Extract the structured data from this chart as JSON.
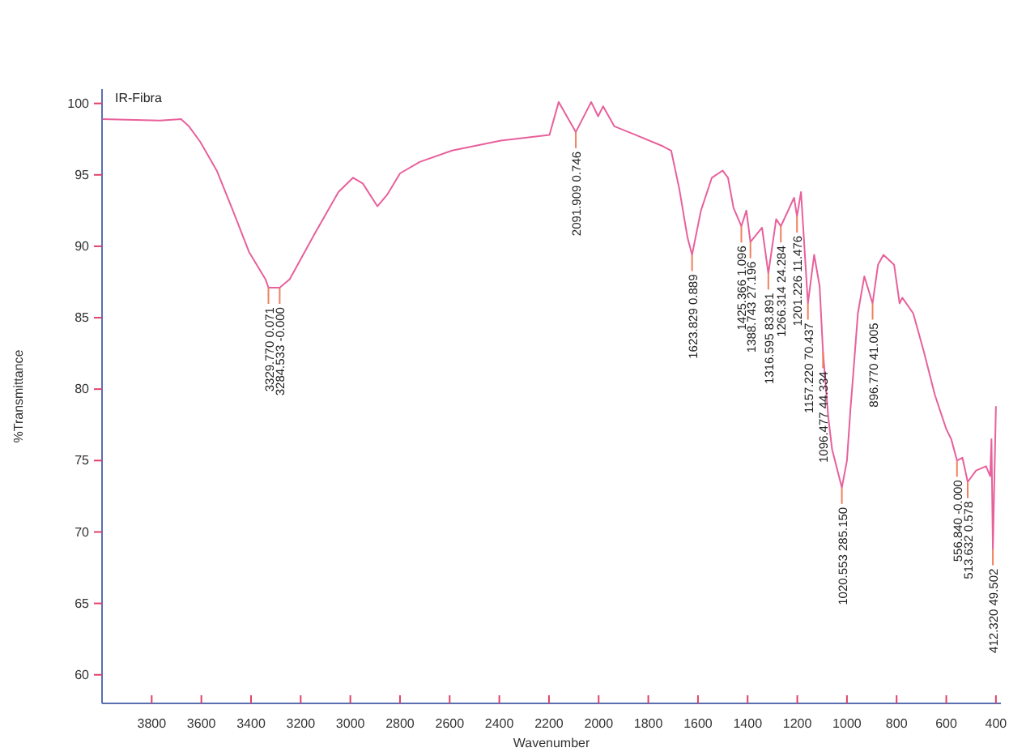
{
  "chart_data": {
    "type": "line",
    "xlabel": "Wavenumber",
    "ylabel": "%Transmittance",
    "xlim": [
      4000,
      380
    ],
    "ylim": [
      58,
      101
    ],
    "xticks": [
      3800,
      3600,
      3400,
      3200,
      3000,
      2800,
      2600,
      2400,
      2200,
      2000,
      1800,
      1600,
      1400,
      1200,
      1000,
      800,
      600,
      400
    ],
    "yticks": [
      60,
      65,
      70,
      75,
      80,
      85,
      90,
      95,
      100
    ],
    "grid": false,
    "legend": "top left",
    "marker": "none",
    "line_style": "solid",
    "series": [
      {
        "name": "IR-Fibra",
        "color": "#e8609c",
        "x": [
          3998,
          3767,
          3682,
          3650,
          3604,
          3538,
          3473,
          3408,
          3342,
          3329.77,
          3284.53,
          3244,
          3146,
          3048,
          2989,
          2950,
          2891,
          2852,
          2800,
          2721,
          2590,
          2394,
          2198,
          2161,
          2091.909,
          2030,
          2002,
          1982,
          1937,
          1852,
          1741,
          1708,
          1675,
          1642,
          1623.829,
          1588,
          1544,
          1501,
          1479,
          1457,
          1425.366,
          1405,
          1388.743,
          1342,
          1316.595,
          1285,
          1266.314,
          1213,
          1201.226,
          1185,
          1157.22,
          1132,
          1110,
          1096.477,
          1075,
          1060,
          1020.553,
          1000,
          985,
          978,
          956,
          930,
          896.77,
          875,
          853,
          810,
          788,
          777,
          733,
          690,
          646,
          600,
          580,
          556.84,
          535,
          513.632,
          480,
          440,
          423,
          418,
          412.32,
          400
        ],
        "values": [
          98.9,
          98.8,
          98.9,
          98.4,
          97.3,
          95.3,
          92.5,
          89.6,
          87.7,
          87.1,
          87.1,
          87.7,
          90.8,
          93.8,
          94.8,
          94.4,
          92.8,
          93.6,
          95.1,
          95.9,
          96.7,
          97.4,
          97.8,
          100.1,
          98.0,
          100.1,
          99.1,
          99.8,
          98.4,
          97.8,
          97.0,
          96.7,
          94.0,
          90.6,
          89.4,
          92.5,
          94.8,
          95.3,
          94.8,
          92.7,
          91.4,
          92.5,
          90.3,
          91.3,
          88.1,
          91.9,
          91.4,
          93.4,
          92.1,
          93.8,
          86.0,
          89.4,
          87.2,
          82.6,
          78.0,
          75.8,
          73.1,
          75.0,
          78.8,
          80.3,
          85.3,
          87.9,
          86.0,
          88.7,
          89.4,
          88.7,
          86.0,
          86.4,
          85.3,
          82.6,
          79.6,
          77.2,
          76.5,
          75.0,
          75.2,
          73.5,
          74.3,
          74.6,
          73.9,
          76.5,
          68.8,
          78.8
        ]
      }
    ],
    "annotations": [
      {
        "text": "3329.770  0.071",
        "x": 3329.77,
        "y": 87.1
      },
      {
        "text": "3284.533  -0.000",
        "x": 3284.53,
        "y": 87.1
      },
      {
        "text": "2091.909  0.746",
        "x": 2091.909,
        "y": 98.0
      },
      {
        "text": "1623.829  0.889",
        "x": 1623.829,
        "y": 89.4
      },
      {
        "text": "1425.366  1.096",
        "x": 1425.366,
        "y": 91.4
      },
      {
        "text": "1388.743  27.196",
        "x": 1388.743,
        "y": 90.3
      },
      {
        "text": "1316.595  83.891",
        "x": 1316.595,
        "y": 88.1
      },
      {
        "text": "1266.314  24.284",
        "x": 1266.314,
        "y": 91.4
      },
      {
        "text": "1201.226  11.476",
        "x": 1201.226,
        "y": 92.1
      },
      {
        "text": "1157.220  70.437",
        "x": 1157.22,
        "y": 86.0
      },
      {
        "text": "1096.477  44.334",
        "x": 1096.477,
        "y": 82.6
      },
      {
        "text": "1020.553  285.150",
        "x": 1020.553,
        "y": 73.1
      },
      {
        "text": "896.770  41.005",
        "x": 896.77,
        "y": 86.0
      },
      {
        "text": "556.840  -0.000",
        "x": 556.84,
        "y": 75.0
      },
      {
        "text": "513.632  0.578",
        "x": 513.632,
        "y": 73.5
      },
      {
        "text": "412.320  49.502",
        "x": 412.32,
        "y": 68.8
      }
    ]
  }
}
